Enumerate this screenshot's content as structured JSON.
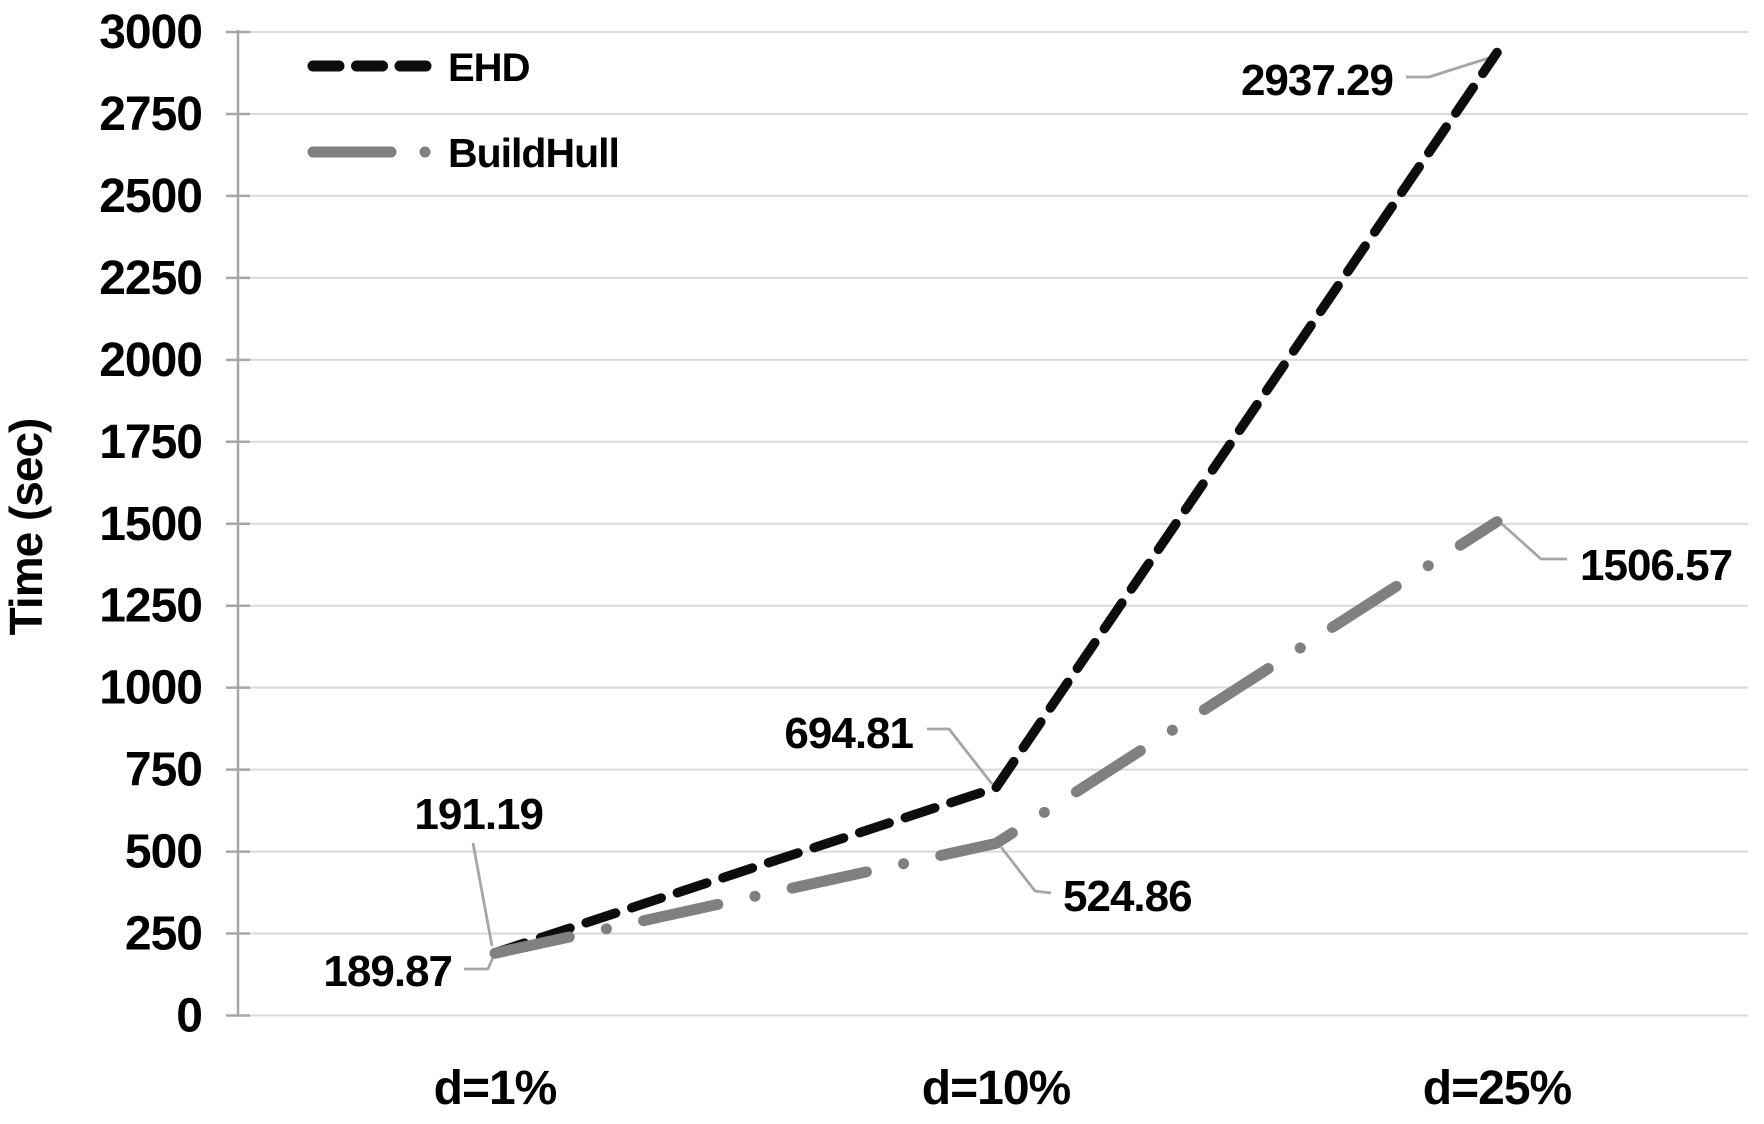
{
  "chart_data": {
    "type": "line",
    "title": "",
    "xlabel": "",
    "ylabel": "Time (sec)",
    "categories": [
      "d=1%",
      "d=10%",
      "d=25%"
    ],
    "series": [
      {
        "name": "EHD",
        "values": [
          191.19,
          694.81,
          2937.29
        ],
        "point_labels": [
          "191.19",
          "694.81",
          "2937.29"
        ],
        "color": "#0d0d0d",
        "line_style": "dashed"
      },
      {
        "name": "BuildHull",
        "values": [
          189.87,
          524.86,
          1506.57
        ],
        "point_labels": [
          "189.87",
          "524.86",
          "1506.57"
        ],
        "color": "#808080",
        "line_style": "long-dash-dot"
      }
    ],
    "ylim": [
      0,
      3000
    ],
    "ytick_step": 250,
    "ytick_labels": [
      "0",
      "250",
      "500",
      "750",
      "1000",
      "1250",
      "1500",
      "1750",
      "2000",
      "2250",
      "2500",
      "2750",
      "3000"
    ],
    "grid": "horizontal",
    "legend_position": "top-left",
    "legend_entries": [
      "EHD",
      "BuildHull"
    ]
  },
  "colors": {
    "background": "#ffffff",
    "gridline": "#d9d9d9",
    "axis": "#a6a6a6",
    "leader_line": "#a6a6a6",
    "text": "#000000",
    "series_ehd": "#0d0d0d",
    "series_buildhull": "#808080"
  }
}
